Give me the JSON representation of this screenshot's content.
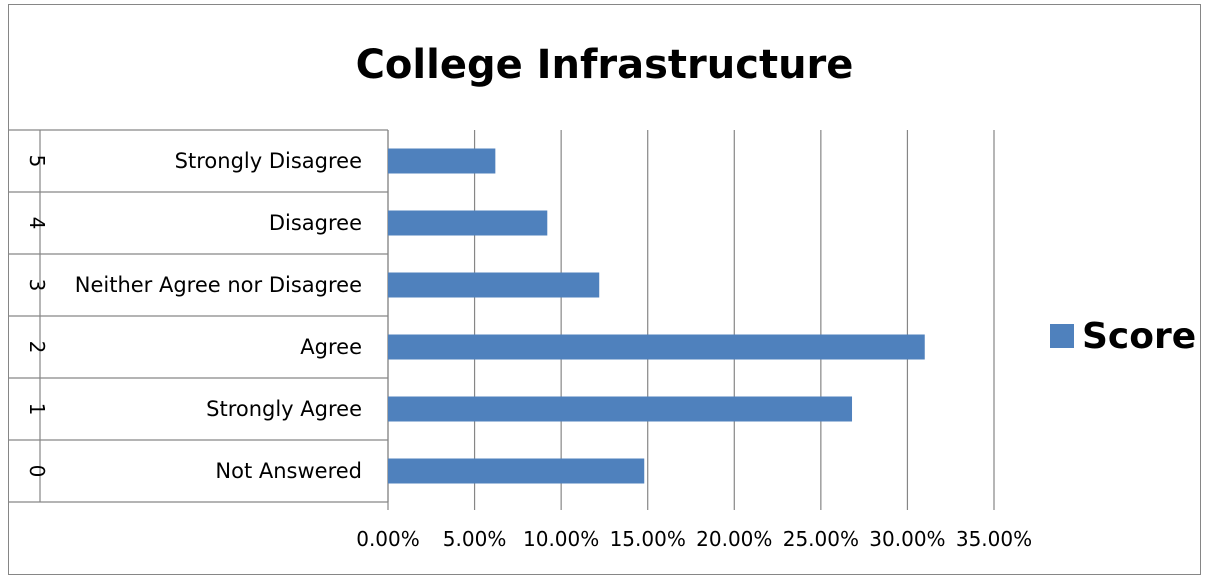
{
  "chart_data": {
    "type": "bar",
    "orientation": "horizontal",
    "title": "College Infrastructure",
    "categories": [
      {
        "code": "0",
        "label": "Not Answered"
      },
      {
        "code": "1",
        "label": "Strongly Agree"
      },
      {
        "code": "2",
        "label": "Agree"
      },
      {
        "code": "3",
        "label": "Neither Agree nor Disagree"
      },
      {
        "code": "4",
        "label": "Disagree"
      },
      {
        "code": "5",
        "label": "Strongly Disagree"
      }
    ],
    "series": [
      {
        "name": "Score",
        "values": [
          0.148,
          0.268,
          0.31,
          0.122,
          0.092,
          0.062
        ],
        "color": "#4f81bd"
      }
    ],
    "xlim": [
      0,
      0.35
    ],
    "xticks": [
      "0.00%",
      "5.00%",
      "10.00%",
      "15.00%",
      "20.00%",
      "25.00%",
      "30.00%",
      "35.00%"
    ],
    "grid": "vertical",
    "legend": "right"
  }
}
